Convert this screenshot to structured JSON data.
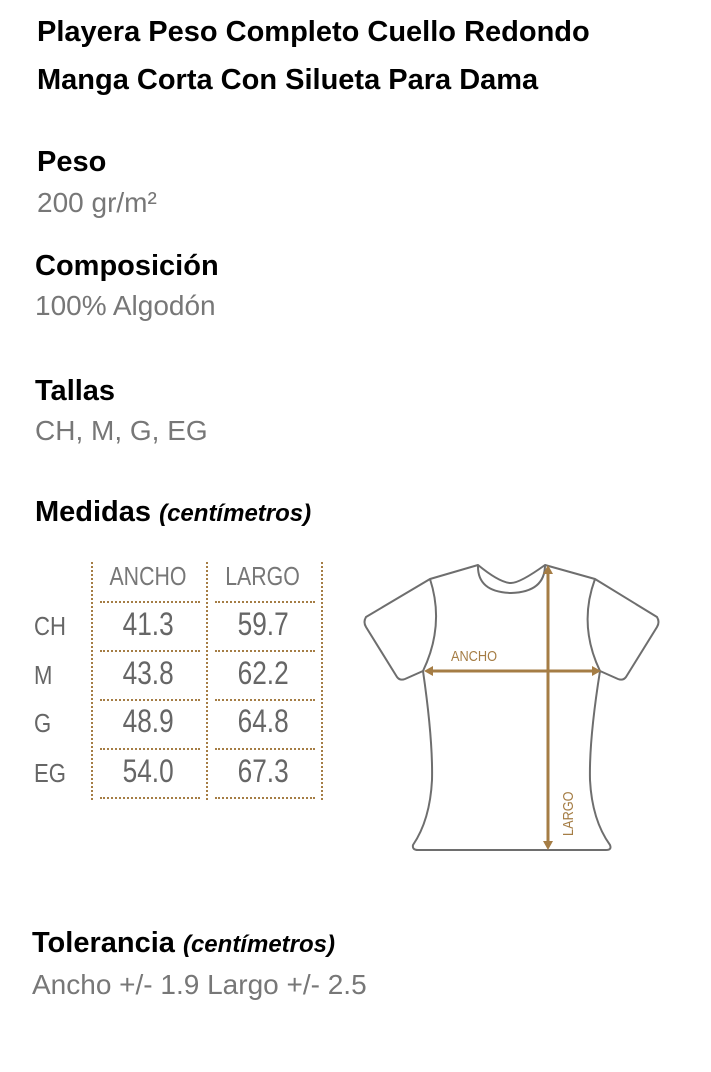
{
  "title": {
    "line1": "Playera Peso Completo Cuello Redondo",
    "line2": "Manga Corta Con Silueta Para Dama"
  },
  "peso": {
    "label": "Peso",
    "value": "200 gr/m²"
  },
  "composicion": {
    "label": "Composición",
    "value": "100% Algodón"
  },
  "tallas": {
    "label": "Tallas",
    "value": "CH, M, G, EG"
  },
  "medidas": {
    "label": "Medidas",
    "unit": "(centímetros)",
    "columns": [
      "ANCHO",
      "LARGO"
    ],
    "rows": [
      {
        "size": "CH",
        "ancho": "41.3",
        "largo": "59.7"
      },
      {
        "size": "M",
        "ancho": "43.8",
        "largo": "62.2"
      },
      {
        "size": "G",
        "ancho": "48.9",
        "largo": "64.8"
      },
      {
        "size": "EG",
        "ancho": "54.0",
        "largo": "67.3"
      }
    ]
  },
  "diagram": {
    "ancho_label": "ANCHO",
    "largo_label": "LARGO",
    "accent_color": "#a57d45",
    "outline_color": "#6e6e6e"
  },
  "tolerancia": {
    "label": "Tolerancia",
    "unit": "(centímetros)",
    "value": "Ancho +/- 1.9 Largo +/- 2.5"
  }
}
